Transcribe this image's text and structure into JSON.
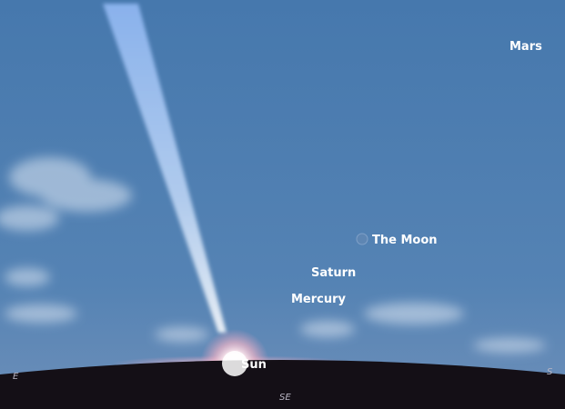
{
  "sky_labels": [
    "Mars",
    "The Moon",
    "Saturn",
    "Mercury",
    "Sun"
  ],
  "compass": [
    "E",
    "SE",
    "S"
  ]
}
